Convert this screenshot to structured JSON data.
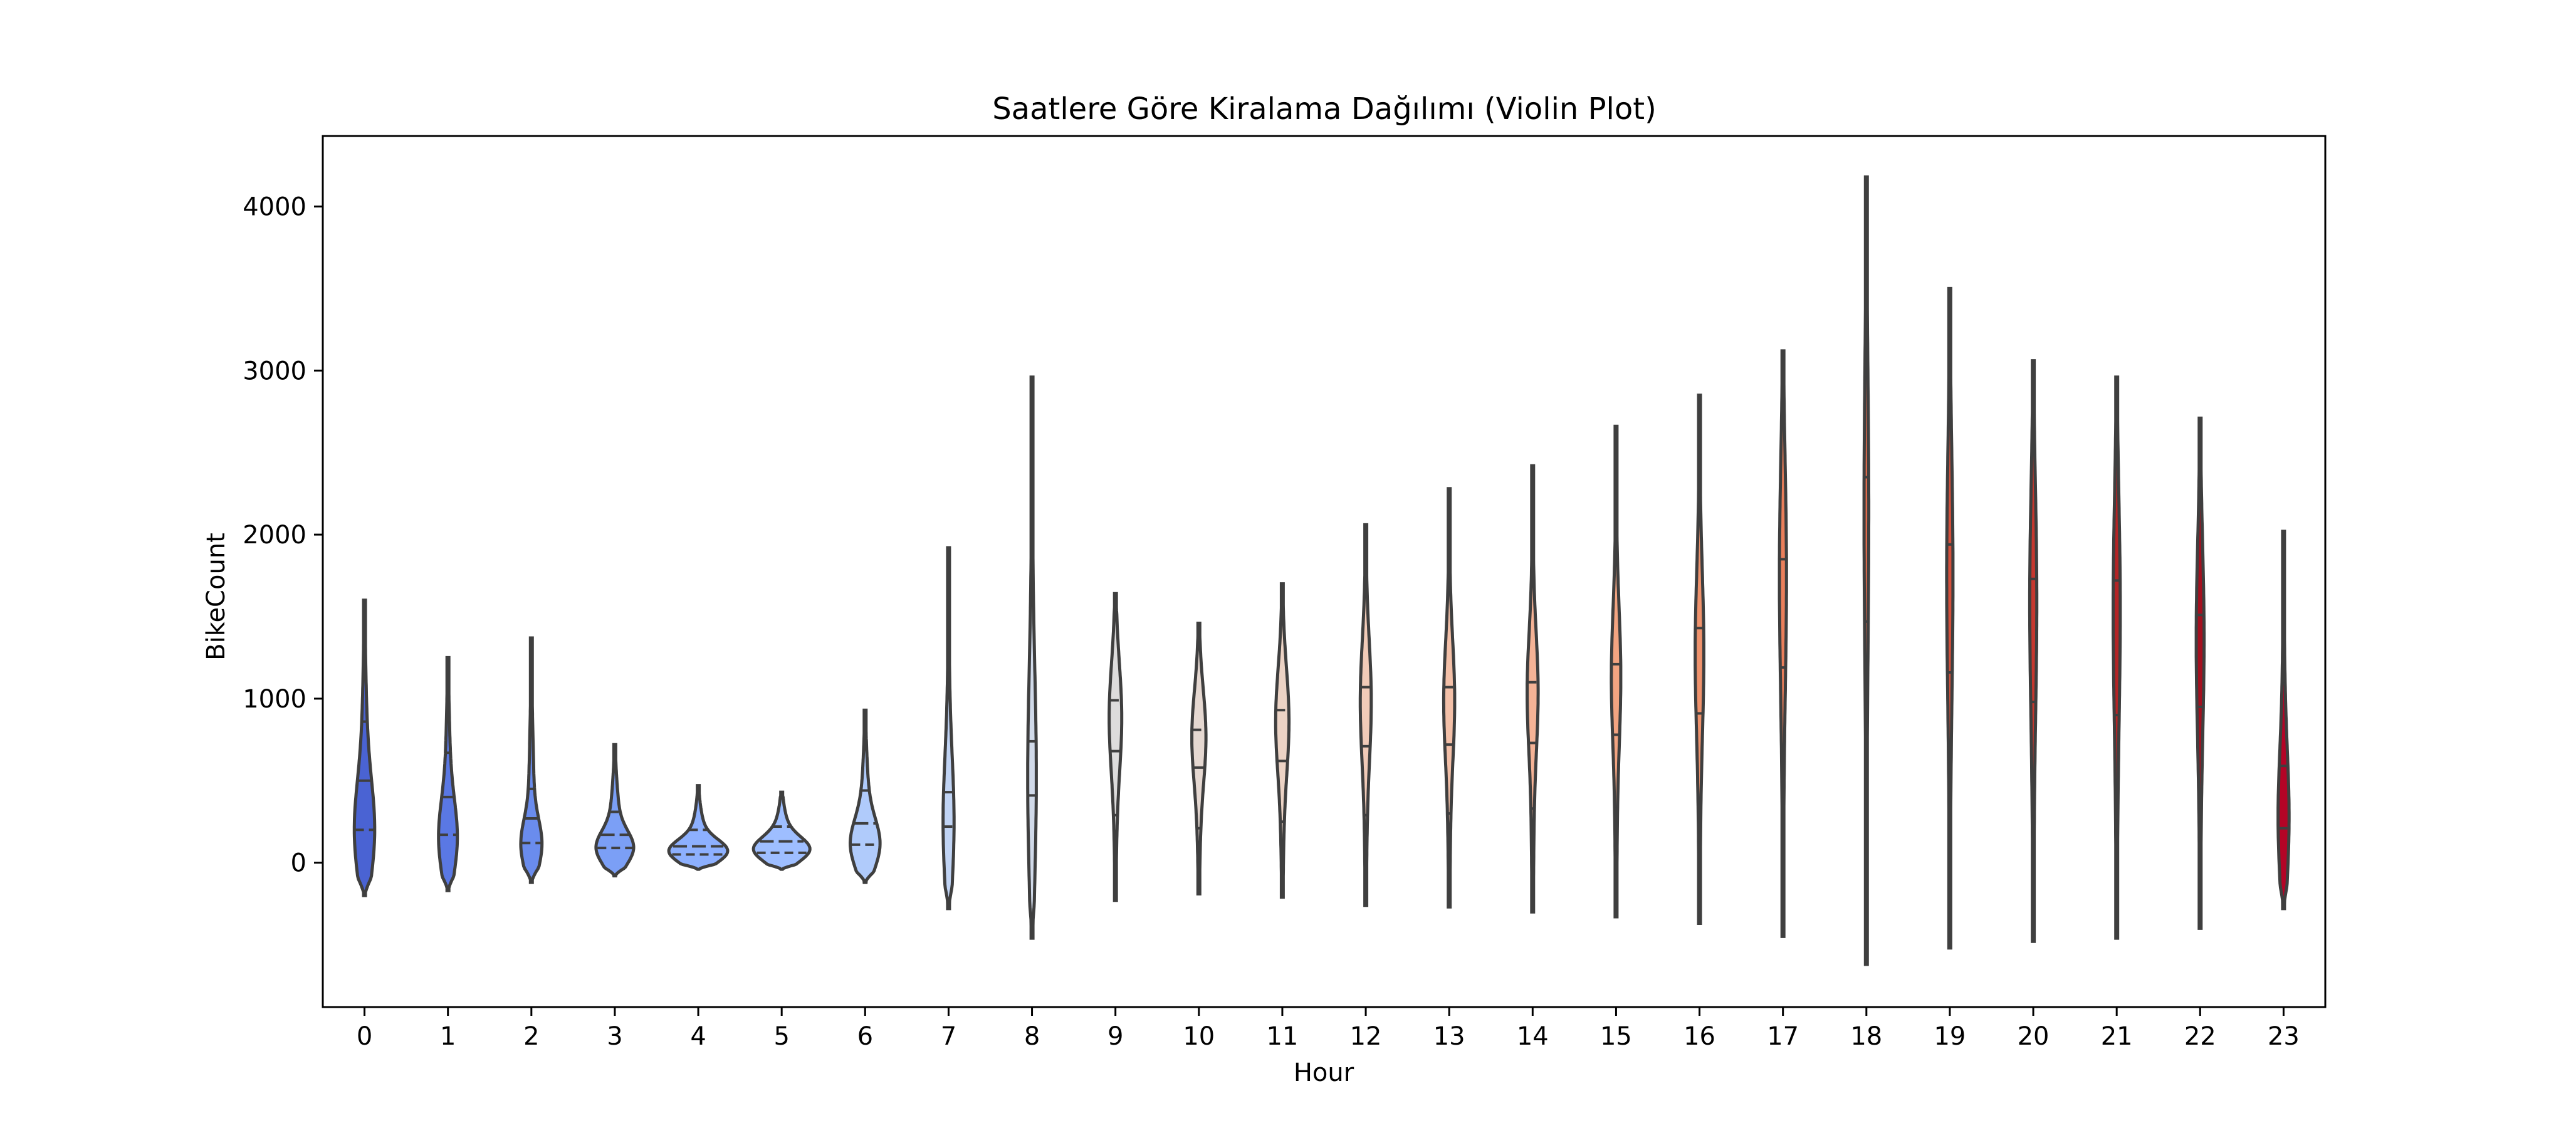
{
  "chart_data": {
    "type": "violin",
    "title": "Saatlere Göre Kiralama Dağılımı (Violin Plot)",
    "xlabel": "Hour",
    "ylabel": "BikeCount",
    "ylim": [
      -880,
      4430
    ],
    "yticks": [
      0,
      1000,
      2000,
      3000,
      4000
    ],
    "categories": [
      "0",
      "1",
      "2",
      "3",
      "4",
      "5",
      "6",
      "7",
      "8",
      "9",
      "10",
      "11",
      "12",
      "13",
      "14",
      "15",
      "16",
      "17",
      "18",
      "19",
      "20",
      "21",
      "22",
      "23"
    ],
    "inner": "quartile",
    "grid": false,
    "palette": "coolwarm",
    "colors": [
      "#4a63d3",
      "#5a78e4",
      "#6a8ced",
      "#7b9ff6",
      "#8db0fe",
      "#9ebeff",
      "#b0cbfb",
      "#c1d4f4",
      "#d1dae9",
      "#dddcdc",
      "#e5d8d1",
      "#ecd3c5",
      "#f1cbb8",
      "#f3c0a8",
      "#f5b396",
      "#f3a481",
      "#f0936d",
      "#ea7f5b",
      "#e26b4b",
      "#d5503b",
      "#c5382f",
      "#b52425",
      "#a4101f",
      "#b40426"
    ],
    "violins": [
      {
        "hour": "0",
        "min": -200,
        "max": 1600,
        "q1": 200,
        "median": 500,
        "q3": 860,
        "mode": 180,
        "width": 0.26
      },
      {
        "hour": "1",
        "min": -170,
        "max": 1250,
        "q1": 170,
        "median": 400,
        "q3": 670,
        "mode": 140,
        "width": 0.24
      },
      {
        "hour": "2",
        "min": -120,
        "max": 1370,
        "q1": 120,
        "median": 270,
        "q3": 450,
        "mode": 110,
        "width": 0.27
      },
      {
        "hour": "3",
        "min": -80,
        "max": 720,
        "q1": 90,
        "median": 170,
        "q3": 310,
        "mode": 90,
        "width": 0.48
      },
      {
        "hour": "4",
        "min": -40,
        "max": 470,
        "q1": 50,
        "median": 100,
        "q3": 200,
        "mode": 70,
        "width": 0.75
      },
      {
        "hour": "5",
        "min": -40,
        "max": 430,
        "q1": 60,
        "median": 130,
        "q3": 220,
        "mode": 80,
        "width": 0.72
      },
      {
        "hour": "6",
        "min": -120,
        "max": 930,
        "q1": 110,
        "median": 240,
        "q3": 440,
        "mode": 110,
        "width": 0.38
      },
      {
        "hour": "7",
        "min": -280,
        "max": 1920,
        "q1": 220,
        "median": 430,
        "q3": 1070,
        "mode": 230,
        "width": 0.14
      },
      {
        "hour": "8",
        "min": -460,
        "max": 2960,
        "q1": 410,
        "median": 740,
        "q3": 1780,
        "mode": 500,
        "width": 0.11
      },
      {
        "hour": "9",
        "min": -230,
        "max": 1640,
        "q1": 290,
        "median": 680,
        "q3": 990,
        "mode": 900,
        "width": 0.16
      },
      {
        "hour": "10",
        "min": -190,
        "max": 1460,
        "q1": 210,
        "median": 580,
        "q3": 810,
        "mode": 780,
        "width": 0.18
      },
      {
        "hour": "11",
        "min": -210,
        "max": 1700,
        "q1": 250,
        "median": 620,
        "q3": 930,
        "mode": 880,
        "width": 0.17
      },
      {
        "hour": "12",
        "min": -260,
        "max": 2060,
        "q1": 290,
        "median": 710,
        "q3": 1070,
        "mode": 1000,
        "width": 0.14
      },
      {
        "hour": "13",
        "min": -270,
        "max": 2280,
        "q1": 300,
        "median": 720,
        "q3": 1070,
        "mode": 1000,
        "width": 0.14
      },
      {
        "hour": "14",
        "min": -300,
        "max": 2420,
        "q1": 330,
        "median": 730,
        "q3": 1100,
        "mode": 1050,
        "width": 0.14
      },
      {
        "hour": "15",
        "min": -330,
        "max": 2660,
        "q1": 330,
        "median": 780,
        "q3": 1210,
        "mode": 1150,
        "width": 0.12
      },
      {
        "hour": "16",
        "min": -370,
        "max": 2850,
        "q1": 360,
        "median": 910,
        "q3": 1430,
        "mode": 1300,
        "width": 0.11
      },
      {
        "hour": "17",
        "min": -450,
        "max": 3120,
        "q1": 390,
        "median": 1190,
        "q3": 1850,
        "mode": 1800,
        "width": 0.09
      },
      {
        "hour": "18",
        "min": -620,
        "max": 4180,
        "q1": 520,
        "median": 1470,
        "q3": 2350,
        "mode": 2200,
        "width": 0.06
      },
      {
        "hour": "19",
        "min": -520,
        "max": 3500,
        "q1": 370,
        "median": 1160,
        "q3": 1940,
        "mode": 1800,
        "width": 0.08
      },
      {
        "hour": "20",
        "min": -480,
        "max": 3060,
        "q1": 280,
        "median": 980,
        "q3": 1730,
        "mode": 1650,
        "width": 0.09
      },
      {
        "hour": "21",
        "min": -460,
        "max": 2960,
        "q1": 270,
        "median": 900,
        "q3": 1720,
        "mode": 1600,
        "width": 0.09
      },
      {
        "hour": "22",
        "min": -400,
        "max": 2710,
        "q1": 280,
        "median": 950,
        "q3": 1510,
        "mode": 1400,
        "width": 0.1
      },
      {
        "hour": "23",
        "min": -280,
        "max": 2020,
        "q1": 210,
        "median": 590,
        "q3": 1090,
        "mode": 250,
        "width": 0.14
      }
    ]
  }
}
